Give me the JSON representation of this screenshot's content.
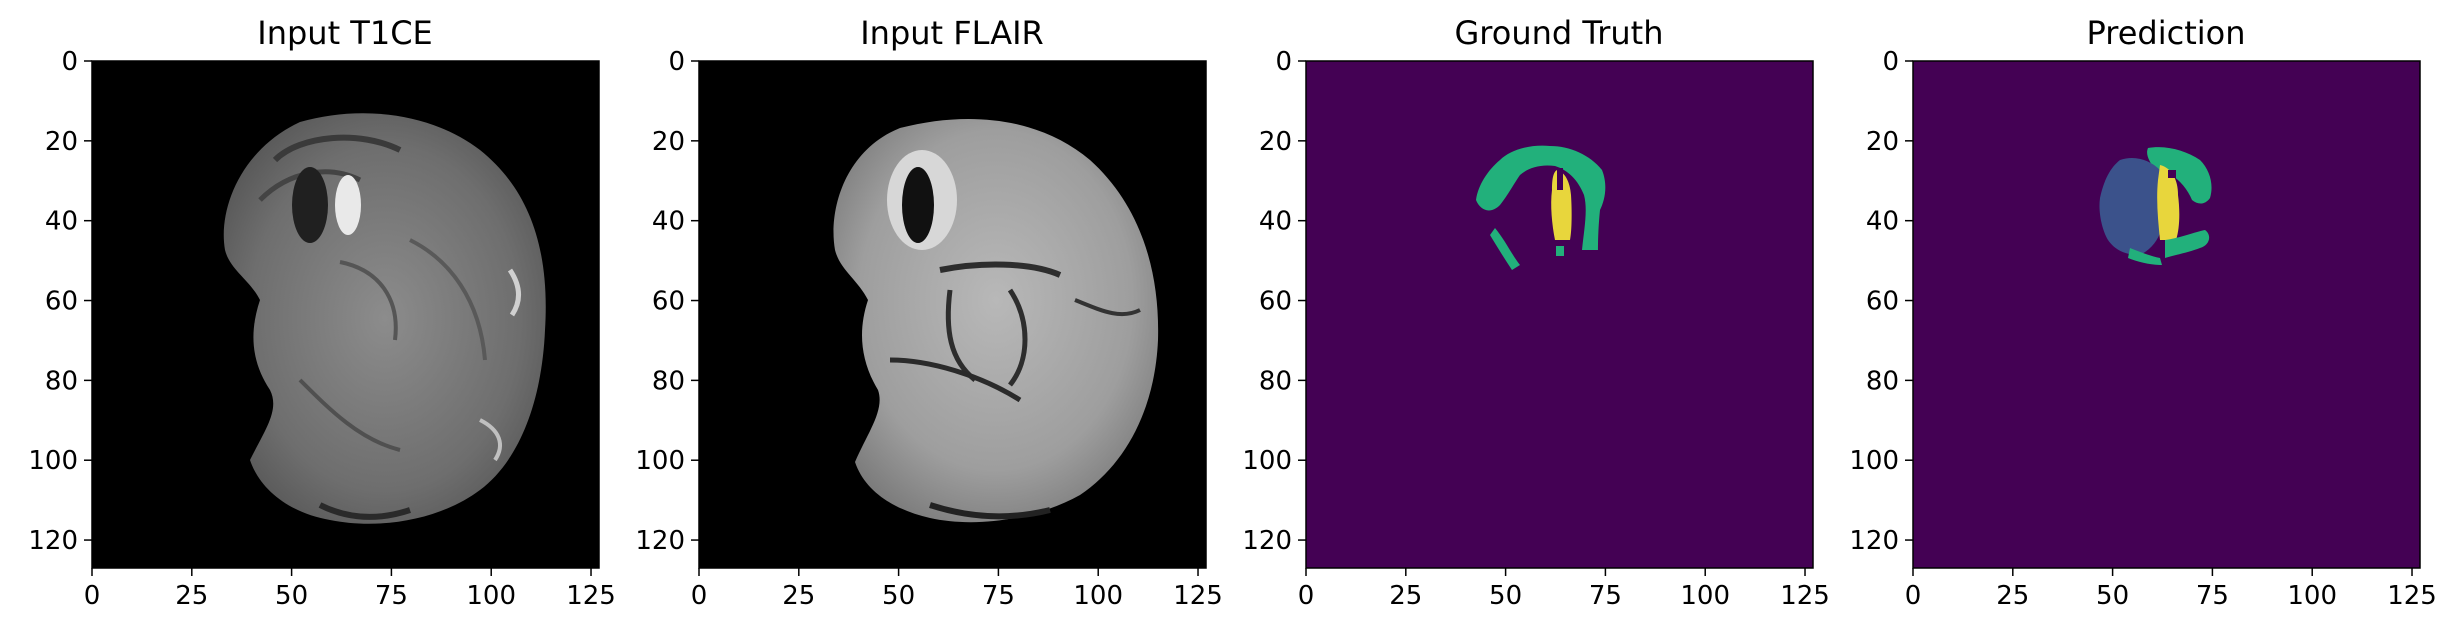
{
  "figure": {
    "panels": [
      {
        "id": "t1ce",
        "title": "Input T1CE",
        "kind": "mri-t1ce"
      },
      {
        "id": "flair",
        "title": "Input FLAIR",
        "kind": "mri-flair"
      },
      {
        "id": "gt",
        "title": "Ground Truth",
        "kind": "seg-gt"
      },
      {
        "id": "pred",
        "title": "Prediction",
        "kind": "seg-pred"
      }
    ],
    "x_ticks": [
      "0",
      "25",
      "50",
      "75",
      "100",
      "125"
    ],
    "y_ticks": [
      "0",
      "20",
      "40",
      "60",
      "80",
      "100",
      "120"
    ],
    "axis_range": [
      0,
      127
    ],
    "colors": {
      "mri_background": "#000000",
      "seg_background": "#440154",
      "seg_edema": "#22b07b",
      "seg_enhancing": "#e8d63c",
      "seg_necrotic": "#3b528b"
    }
  }
}
